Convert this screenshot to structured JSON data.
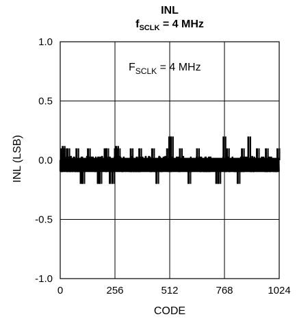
{
  "chart_data": {
    "type": "line",
    "title": "INL",
    "subtitle": {
      "main": "f",
      "sub": "SCLK",
      "rest": " = 4 MHz"
    },
    "annotation": {
      "main": "F",
      "sub": "SCLK",
      "rest": " = 4 MHz"
    },
    "xlabel": "CODE",
    "ylabel": "INL (LSB)",
    "xlim": [
      0,
      1024
    ],
    "ylim": [
      -1.0,
      1.0
    ],
    "xticks": [
      0,
      256,
      512,
      768,
      1024
    ],
    "xtick_labels": [
      "0",
      "256",
      "512",
      "768",
      "1024"
    ],
    "yticks": [
      1.0,
      0.5,
      0.0,
      -0.5,
      -1.0
    ],
    "ytick_labels": [
      "1.0",
      "0.5",
      "0.0",
      "-0.5",
      "-1.0"
    ],
    "grid": true,
    "series": [
      {
        "color": "#000000",
        "noise_band": [
          -0.1,
          0.1
        ],
        "spikes": [
          {
            "x": 6,
            "y": 0.1
          },
          {
            "x": 12,
            "y": 0.12
          },
          {
            "x": 20,
            "y": 0.1
          },
          {
            "x": 34,
            "y": 0.1
          },
          {
            "x": 48,
            "y": -0.1
          },
          {
            "x": 76,
            "y": 0.1
          },
          {
            "x": 96,
            "y": -0.2
          },
          {
            "x": 104,
            "y": -0.2
          },
          {
            "x": 130,
            "y": 0.1
          },
          {
            "x": 176,
            "y": -0.2
          },
          {
            "x": 184,
            "y": -0.2
          },
          {
            "x": 208,
            "y": 0.1
          },
          {
            "x": 216,
            "y": 0.1
          },
          {
            "x": 232,
            "y": -0.2
          },
          {
            "x": 244,
            "y": -0.2
          },
          {
            "x": 256,
            "y": 0.1
          },
          {
            "x": 262,
            "y": 0.12
          },
          {
            "x": 270,
            "y": 0.1
          },
          {
            "x": 330,
            "y": 0.1
          },
          {
            "x": 360,
            "y": -0.1
          },
          {
            "x": 370,
            "y": 0.1
          },
          {
            "x": 430,
            "y": 0.1
          },
          {
            "x": 450,
            "y": -0.2
          },
          {
            "x": 466,
            "y": -0.1
          },
          {
            "x": 500,
            "y": 0.1
          },
          {
            "x": 510,
            "y": 0.2
          },
          {
            "x": 518,
            "y": 0.2
          },
          {
            "x": 560,
            "y": 0.1
          },
          {
            "x": 600,
            "y": -0.2
          },
          {
            "x": 640,
            "y": 0.1
          },
          {
            "x": 690,
            "y": -0.1
          },
          {
            "x": 730,
            "y": -0.2
          },
          {
            "x": 740,
            "y": -0.2
          },
          {
            "x": 764,
            "y": 0.2
          },
          {
            "x": 780,
            "y": 0.1
          },
          {
            "x": 830,
            "y": -0.2
          },
          {
            "x": 850,
            "y": 0.1
          },
          {
            "x": 880,
            "y": 0.2
          },
          {
            "x": 920,
            "y": 0.1
          },
          {
            "x": 962,
            "y": 0.1
          },
          {
            "x": 1000,
            "y": -0.1
          },
          {
            "x": 1016,
            "y": 0.1
          }
        ]
      }
    ]
  }
}
